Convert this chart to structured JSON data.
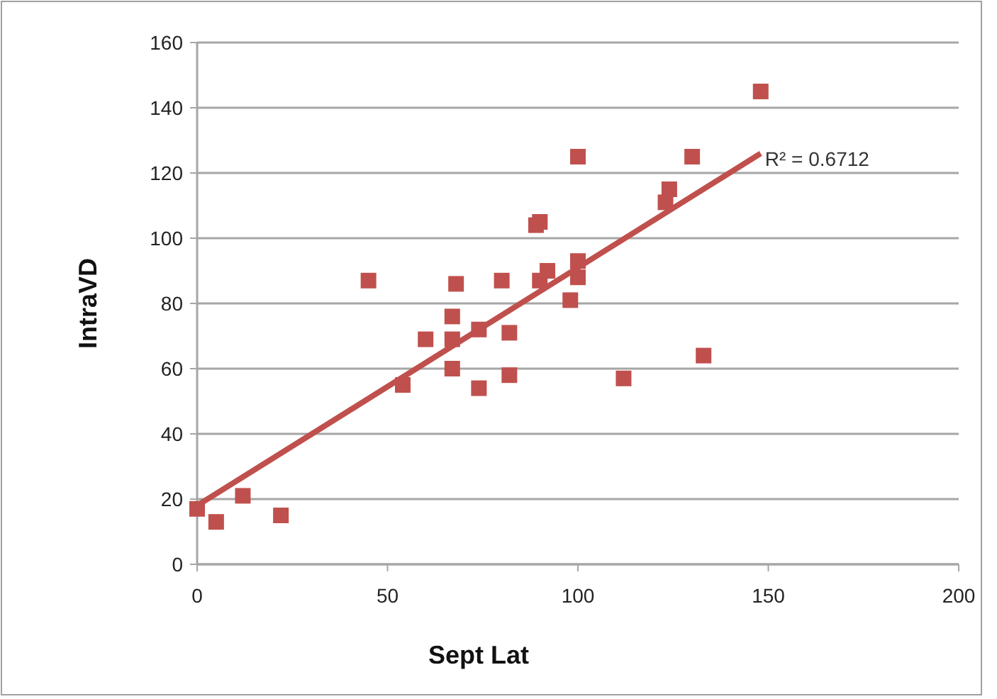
{
  "chart_data": {
    "type": "scatter",
    "xlabel": "Sept Lat",
    "ylabel": "IntraVD",
    "xlim": [
      0,
      200
    ],
    "xticks": [
      0,
      50,
      100,
      150,
      200
    ],
    "ylim": [
      0,
      160
    ],
    "yticks": [
      0,
      20,
      40,
      60,
      80,
      100,
      120,
      140,
      160
    ],
    "grid": "y",
    "marker": "square",
    "series": [
      {
        "color": "#c0504d",
        "x": [
          0,
          5,
          12,
          22,
          45,
          54,
          60,
          67,
          67,
          67,
          68,
          74,
          74,
          80,
          82,
          82,
          89,
          90,
          90,
          92,
          98,
          100,
          100,
          100,
          112,
          123,
          124,
          130,
          133,
          148
        ],
        "values": [
          17,
          13,
          21,
          15,
          87,
          55,
          69,
          76,
          69,
          60,
          86,
          72,
          54,
          87,
          71,
          58,
          104,
          105,
          87,
          90,
          81,
          125,
          93,
          88,
          57,
          111,
          115,
          125,
          64,
          145
        ]
      },
      {
        "type": "line",
        "color": "#c0504d",
        "x": [
          0,
          148
        ],
        "values": [
          18,
          126
        ],
        "marker": "none"
      }
    ],
    "annotations": [
      {
        "text": "R² = 0.6712",
        "x": 148,
        "y": 126
      }
    ]
  }
}
